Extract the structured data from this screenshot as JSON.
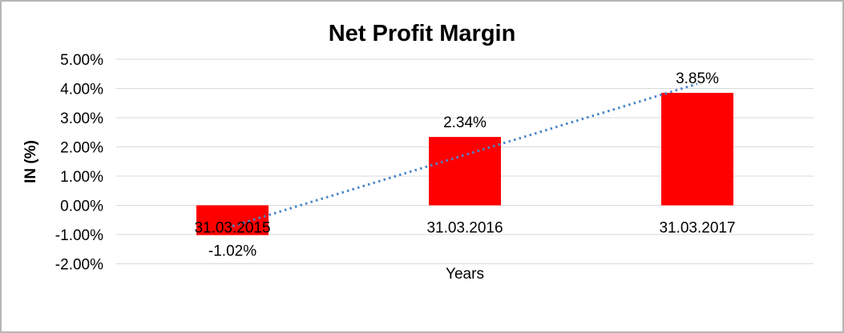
{
  "chart_data": {
    "type": "bar",
    "title": "Net Profit Margin",
    "xlabel": "Years",
    "ylabel": "IN (%)",
    "categories": [
      "31.03.2015",
      "31.03.2016",
      "31.03.2017"
    ],
    "values": [
      -1.02,
      2.34,
      3.85
    ],
    "data_labels": [
      "-1.02%",
      "2.34%",
      "3.85%"
    ],
    "y_ticks": [
      {
        "value": 5,
        "label": "5.00%"
      },
      {
        "value": 4,
        "label": "4.00%"
      },
      {
        "value": 3,
        "label": "3.00%"
      },
      {
        "value": 2,
        "label": "2.00%"
      },
      {
        "value": 1,
        "label": "1.00%"
      },
      {
        "value": 0,
        "label": "0.00%"
      },
      {
        "value": -1,
        "label": "-1.00%"
      },
      {
        "value": -2,
        "label": "-2.00%"
      }
    ],
    "ylim": [
      -2,
      5
    ],
    "grid": true,
    "legend": "none",
    "bar_color": "#FF0000",
    "gridline_color": "#D9D9D9",
    "text_color": "#000000",
    "border_color": "#B5B5B5",
    "background": "#FFFFFF",
    "trendline": {
      "type": "linear",
      "style": "dotted",
      "color": "#4A86C8"
    }
  }
}
